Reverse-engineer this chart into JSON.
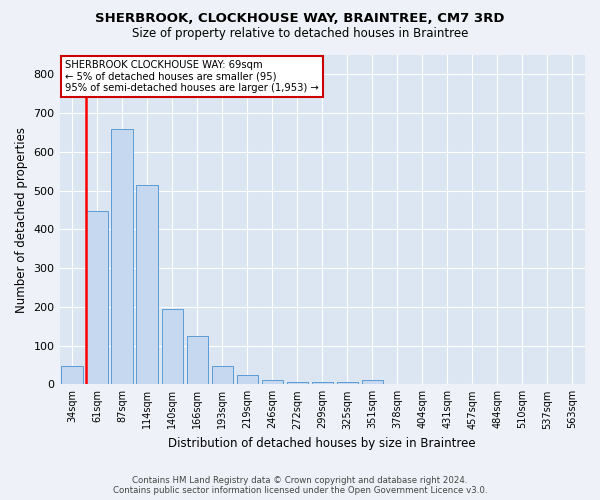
{
  "title_line1": "SHERBROOK, CLOCKHOUSE WAY, BRAINTREE, CM7 3RD",
  "title_line2": "Size of property relative to detached houses in Braintree",
  "xlabel": "Distribution of detached houses by size in Braintree",
  "ylabel": "Number of detached properties",
  "categories": [
    "34sqm",
    "61sqm",
    "87sqm",
    "114sqm",
    "140sqm",
    "166sqm",
    "193sqm",
    "219sqm",
    "246sqm",
    "272sqm",
    "299sqm",
    "325sqm",
    "351sqm",
    "378sqm",
    "404sqm",
    "431sqm",
    "457sqm",
    "484sqm",
    "510sqm",
    "537sqm",
    "563sqm"
  ],
  "values": [
    47,
    447,
    660,
    515,
    195,
    125,
    47,
    25,
    10,
    5,
    5,
    5,
    10,
    0,
    0,
    0,
    0,
    0,
    0,
    0,
    0
  ],
  "bar_color": "#c5d8f0",
  "bar_edge_color": "#5b9bd5",
  "vline_color": "#ff0000",
  "vline_bar_index": 1,
  "annotation_title": "SHERBROOK CLOCKHOUSE WAY: 69sqm",
  "annotation_line2": "← 5% of detached houses are smaller (95)",
  "annotation_line3": "95% of semi-detached houses are larger (1,953) →",
  "annotation_box_facecolor": "#ffffff",
  "annotation_box_edgecolor": "#cc0000",
  "ylim": [
    0,
    850
  ],
  "yticks": [
    0,
    100,
    200,
    300,
    400,
    500,
    600,
    700,
    800
  ],
  "footer_line1": "Contains HM Land Registry data © Crown copyright and database right 2024.",
  "footer_line2": "Contains public sector information licensed under the Open Government Licence v3.0.",
  "fig_bg_color": "#eef2f8",
  "plot_bg_color": "#dce6f2"
}
